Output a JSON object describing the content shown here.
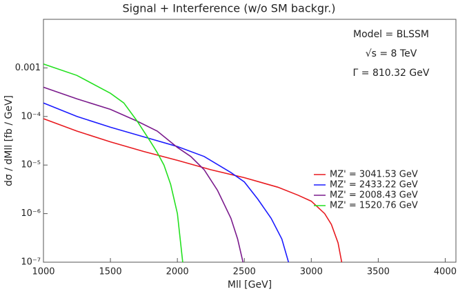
{
  "chart_data": {
    "type": "line",
    "title": "Signal + Interference (w/o SM backgr.)",
    "x_label": "Mll [GeV]",
    "y_label": "dσ / dMll [fb / GeV]",
    "annotations": [
      "Model = BLSSM",
      "√s = 8 TeV",
      "Γ = 810.32 GeV"
    ],
    "xlim": [
      1000,
      4080
    ],
    "ylim": [
      1e-07,
      0.01
    ],
    "log_y": true,
    "xticks": [
      1000,
      1500,
      2000,
      2500,
      3000,
      3500,
      4000
    ],
    "yticks": [
      {
        "value": 1e-07,
        "label": "10⁻⁷"
      },
      {
        "value": 1e-06,
        "label": "10⁻⁶"
      },
      {
        "value": 1e-05,
        "label": "10⁻⁵"
      },
      {
        "value": 0.0001,
        "label": "10⁻⁴"
      },
      0.001
    ],
    "legend": "right",
    "series": [
      {
        "name": "MZ' = 3041.53 GeV",
        "color": "#e8191e",
        "x": [
          1000,
          1250,
          1500,
          1750,
          2000,
          2250,
          2500,
          2750,
          2900,
          3000,
          3100,
          3150,
          3200,
          3227
        ],
        "values": [
          9e-05,
          5e-05,
          3e-05,
          1.9e-05,
          1.25e-05,
          8e-06,
          5.5e-06,
          3.5e-06,
          2.4e-06,
          1.8e-06,
          1e-06,
          6e-07,
          2.5e-07,
          1e-07
        ]
      },
      {
        "name": "MZ' = 2433.22 GeV",
        "color": "#1a1aff",
        "x": [
          1000,
          1250,
          1500,
          1750,
          2000,
          2200,
          2400,
          2500,
          2600,
          2700,
          2780,
          2830
        ],
        "values": [
          0.00019,
          0.0001,
          6e-05,
          3.8e-05,
          2.4e-05,
          1.5e-05,
          7e-06,
          4.5e-06,
          2e-06,
          8e-07,
          3e-07,
          1e-07
        ]
      },
      {
        "name": "MZ' = 2008.43 GeV",
        "color": "#7a1a8c",
        "x": [
          1000,
          1250,
          1500,
          1700,
          1850,
          2000,
          2100,
          2200,
          2300,
          2400,
          2450,
          2490
        ],
        "values": [
          0.0004,
          0.00023,
          0.00014,
          8e-05,
          5e-05,
          2.3e-05,
          1.5e-05,
          8e-06,
          3e-06,
          8e-07,
          3e-07,
          1e-07
        ]
      },
      {
        "name": "MZ' = 1520.76 GeV",
        "color": "#22e01e",
        "x": [
          1000,
          1250,
          1500,
          1600,
          1700,
          1800,
          1850,
          1900,
          1950,
          2000,
          2040
        ],
        "values": [
          0.0012,
          0.0007,
          0.0003,
          0.00019,
          8e-05,
          3e-05,
          1.8e-05,
          1e-05,
          4e-06,
          1e-06,
          1e-07
        ]
      }
    ]
  }
}
